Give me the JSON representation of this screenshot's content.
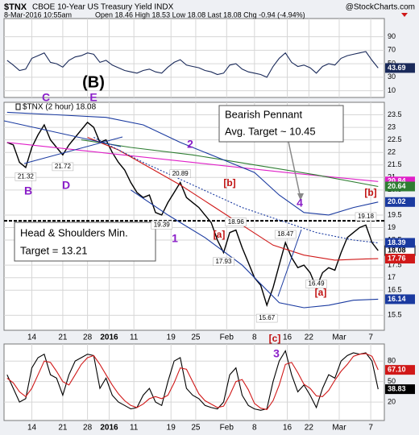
{
  "header": {
    "symbol": "$TNX",
    "name": "CBOE 10-Year US Treasury Yield INDX",
    "source": "@StockCharts.com",
    "datetime": "8-Mar-2016 10:55am",
    "quote": "Open 18.46 High 18.53 Low 18.08 Last 18.08 Chg -0.94 (-4.94%)"
  },
  "chart_data": [
    {
      "type": "line",
      "xlim": [
        -0.5,
        61
      ],
      "ylim": [
        0,
        117
      ],
      "yticks": [
        90,
        70,
        50,
        30,
        10
      ],
      "grid": true,
      "x": [
        0,
        1,
        2,
        3,
        4,
        5,
        6,
        7,
        8,
        9,
        10,
        11,
        12,
        13,
        14,
        15,
        16,
        17,
        18,
        19,
        20,
        21,
        22,
        23,
        24,
        25,
        26,
        27,
        28,
        29,
        30,
        31,
        32,
        33,
        34,
        35,
        36,
        37,
        38,
        39,
        40,
        41,
        42,
        43,
        44,
        45,
        46,
        47,
        48,
        49,
        50,
        51,
        52,
        53,
        54,
        55,
        56,
        57,
        58,
        59,
        60
      ],
      "series": [
        {
          "color": "#1a2a5a",
          "values": [
            55,
            48,
            40,
            42,
            58,
            62,
            66,
            52,
            50,
            45,
            55,
            60,
            62,
            66,
            64,
            52,
            55,
            48,
            44,
            40,
            38,
            36,
            40,
            42,
            38,
            36,
            45,
            52,
            56,
            48,
            46,
            44,
            40,
            38,
            34,
            36,
            48,
            50,
            42,
            38,
            36,
            34,
            30,
            46,
            58,
            66,
            52,
            46,
            48,
            44,
            36,
            46,
            50,
            48,
            58,
            62,
            64,
            66,
            68,
            55,
            43.69
          ]
        }
      ]
    },
    {
      "type": "line",
      "xlim": [
        -0.5,
        61
      ],
      "ylim": [
        14.9,
        24.0
      ],
      "yticks": [
        23.5,
        23.0,
        22.5,
        22.0,
        21.5,
        21.0,
        20.5,
        19.5,
        19.0,
        18.5,
        17.5,
        17.0,
        16.5,
        15.5
      ],
      "xticks": [
        {
          "value": 4,
          "label": "14"
        },
        {
          "value": 9,
          "label": "21"
        },
        {
          "value": 13,
          "label": "28"
        },
        {
          "value": 16.5,
          "label": "2016"
        },
        {
          "value": 20.5,
          "label": "11"
        },
        {
          "value": 26.5,
          "label": "19"
        },
        {
          "value": 30.5,
          "label": "25"
        },
        {
          "value": 35.5,
          "label": "Feb"
        },
        {
          "value": 40,
          "label": "8"
        },
        {
          "value": 45.3,
          "label": "16"
        },
        {
          "value": 48.8,
          "label": "22"
        },
        {
          "value": 53.7,
          "label": "Mar"
        },
        {
          "value": 58.8,
          "label": "7"
        }
      ],
      "grid": true,
      "legend": "$TNX (2 hour) 18.08",
      "hline": 19.27,
      "series": [
        {
          "color": "#000000",
          "bold": true,
          "x": [
            0,
            1,
            2,
            3,
            4,
            5,
            6,
            7,
            8,
            9,
            10,
            11,
            12,
            13,
            14,
            15,
            16,
            17,
            18,
            19,
            20,
            21,
            22,
            23,
            24,
            25,
            26,
            27,
            28,
            29,
            30,
            31,
            32,
            33,
            34,
            35,
            36,
            37,
            38,
            39,
            40,
            41,
            42,
            43,
            44,
            45,
            46,
            47,
            48,
            49,
            50,
            51,
            52,
            53,
            54,
            55,
            56,
            57,
            58,
            59,
            60
          ],
          "values": [
            22.4,
            22.3,
            21.6,
            21.4,
            22.2,
            22.7,
            23.1,
            22.5,
            22.2,
            21.9,
            22.3,
            22.6,
            22.9,
            23.2,
            23.0,
            22.4,
            22.5,
            22.0,
            21.6,
            21.3,
            20.8,
            20.4,
            20.2,
            20.3,
            19.6,
            19.5,
            20.0,
            20.4,
            20.8,
            20.2,
            20.0,
            19.8,
            19.5,
            19.2,
            18.5,
            18.0,
            18.8,
            18.9,
            18.2,
            17.6,
            17.0,
            16.7,
            15.9,
            16.6,
            17.5,
            18.4,
            17.8,
            17.4,
            17.5,
            17.2,
            16.6,
            17.2,
            17.4,
            17.3,
            18.0,
            18.6,
            18.8,
            19.0,
            19.1,
            18.4,
            18.08
          ]
        },
        {
          "color": "#e020c8",
          "x": [
            0,
            15,
            30,
            45,
            60
          ],
          "values": [
            22.4,
            22.0,
            21.6,
            21.2,
            20.84
          ]
        },
        {
          "color": "#2e7d32",
          "x": [
            12,
            20,
            30,
            40,
            50,
            60
          ],
          "values": [
            22.5,
            22.2,
            21.9,
            21.5,
            21.1,
            20.64
          ]
        },
        {
          "color": "#d01818",
          "x": [
            13,
            18,
            23,
            28,
            33,
            38,
            43,
            48,
            53,
            58,
            60
          ],
          "values": [
            22.6,
            22.1,
            21.4,
            20.7,
            19.9,
            19.1,
            18.3,
            17.9,
            17.7,
            17.75,
            17.76
          ]
        },
        {
          "color": "#1a3aa0",
          "x": [
            0,
            8,
            16,
            22,
            28,
            34,
            40,
            44,
            48,
            52,
            56,
            60
          ],
          "values": [
            23.6,
            23.5,
            23.4,
            23.1,
            22.4,
            21.8,
            21.2,
            20.3,
            19.6,
            19.5,
            19.8,
            20.02
          ]
        },
        {
          "color": "#1a3aa0",
          "dashed": true,
          "x": [
            14,
            22,
            30,
            38,
            44,
            50,
            56,
            60
          ],
          "values": [
            22.6,
            21.6,
            20.7,
            19.8,
            19.3,
            18.8,
            18.5,
            18.39
          ]
        },
        {
          "color": "#1a3aa0",
          "x": [
            20,
            26,
            32,
            38,
            44,
            48,
            52,
            56,
            60
          ],
          "values": [
            20.5,
            19.5,
            18.6,
            17.5,
            16.0,
            15.8,
            15.9,
            16.1,
            16.14
          ]
        }
      ],
      "point_labels": [
        {
          "x": 3,
          "value": 21.32
        },
        {
          "x": 9,
          "value": 21.72
        },
        {
          "x": 28,
          "value": 20.89
        },
        {
          "x": 25,
          "value": 19.39
        },
        {
          "x": 37,
          "value": 18.96
        },
        {
          "x": 35,
          "value": 17.93
        },
        {
          "x": 45,
          "value": 18.47
        },
        {
          "x": 42,
          "value": 15.67
        },
        {
          "x": 50,
          "value": 16.49
        },
        {
          "x": 58,
          "value": 19.18
        }
      ],
      "annotations": [
        {
          "text": "(B)",
          "color": "#000000"
        },
        {
          "text": "C",
          "color": "#8a1ec8"
        },
        {
          "text": "E",
          "color": "#8a1ec8"
        },
        {
          "text": "B",
          "color": "#8a1ec8"
        },
        {
          "text": "D",
          "color": "#8a1ec8"
        },
        {
          "text": "2",
          "color": "#8a1ec8"
        },
        {
          "text": "[b]",
          "color": "#c01010"
        },
        {
          "text": "1",
          "color": "#8a1ec8"
        },
        {
          "text": "[a]",
          "color": "#c01010"
        },
        {
          "text": "4",
          "color": "#8a1ec8"
        },
        {
          "text": "[b]",
          "color": "#c01010"
        },
        {
          "text": "[c]",
          "color": "#c01010"
        },
        {
          "text": "3",
          "color": "#8a1ec8"
        },
        {
          "text": "[a]",
          "color": "#c01010"
        }
      ],
      "boxes": [
        {
          "lines": [
            "Bearish Pennant",
            "Avg. Target ~ 10.45"
          ]
        },
        {
          "lines": [
            "Head & Shoulders Min.",
            "Target = 13.21"
          ]
        }
      ]
    },
    {
      "type": "line",
      "xlim": [
        -0.5,
        61
      ],
      "ylim": [
        -7,
        105
      ],
      "yticks": [
        80,
        50,
        20
      ],
      "grid": true,
      "xticks": [
        {
          "value": 4,
          "label": "14"
        },
        {
          "value": 9,
          "label": "21"
        },
        {
          "value": 13,
          "label": "28"
        },
        {
          "value": 16.5,
          "label": "2016"
        },
        {
          "value": 20.5,
          "label": "11"
        },
        {
          "value": 26.5,
          "label": "19"
        },
        {
          "value": 30.5,
          "label": "25"
        },
        {
          "value": 35.5,
          "label": "Feb"
        },
        {
          "value": 40,
          "label": "8"
        },
        {
          "value": 45.3,
          "label": "16"
        },
        {
          "value": 48.8,
          "label": "22"
        },
        {
          "value": 53.7,
          "label": "Mar"
        },
        {
          "value": 58.8,
          "label": "7"
        }
      ],
      "x": [
        0,
        1,
        2,
        3,
        4,
        5,
        6,
        7,
        8,
        9,
        10,
        11,
        12,
        13,
        14,
        15,
        16,
        17,
        18,
        19,
        20,
        21,
        22,
        23,
        24,
        25,
        26,
        27,
        28,
        29,
        30,
        31,
        32,
        33,
        34,
        35,
        36,
        37,
        38,
        39,
        40,
        41,
        42,
        43,
        44,
        45,
        46,
        47,
        48,
        49,
        50,
        51,
        52,
        53,
        54,
        55,
        56,
        57,
        58,
        59,
        60
      ],
      "series": [
        {
          "color": "#000000",
          "values": [
            60,
            40,
            20,
            25,
            70,
            85,
            90,
            60,
            55,
            30,
            60,
            80,
            85,
            90,
            88,
            40,
            55,
            30,
            20,
            15,
            10,
            12,
            30,
            40,
            20,
            15,
            50,
            80,
            85,
            40,
            30,
            25,
            15,
            12,
            10,
            20,
            60,
            70,
            30,
            15,
            10,
            8,
            10,
            50,
            80,
            95,
            60,
            35,
            45,
            30,
            12,
            40,
            60,
            55,
            80,
            88,
            92,
            90,
            92,
            80,
            38.83
          ]
        },
        {
          "color": "#d01818",
          "values": [
            55,
            48,
            35,
            28,
            40,
            60,
            80,
            78,
            65,
            50,
            45,
            60,
            75,
            85,
            88,
            75,
            60,
            45,
            32,
            22,
            15,
            12,
            17,
            25,
            28,
            25,
            30,
            48,
            70,
            68,
            50,
            32,
            22,
            17,
            12,
            14,
            30,
            50,
            53,
            38,
            18,
            11,
            9,
            22,
            45,
            75,
            78,
            63,
            46,
            40,
            29,
            28,
            37,
            52,
            65,
            75,
            87,
            90,
            91,
            87,
            67.1
          ],
          "last_label": "67.10"
        }
      ]
    }
  ]
}
